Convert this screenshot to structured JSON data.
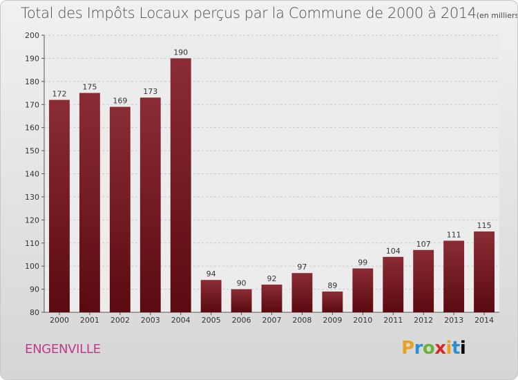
{
  "title": "Total des Impôts Locaux perçus par la Commune de 2000 à 2014",
  "unit": "(en milliers d'€)",
  "commune": "ENGENVILLE",
  "logo": [
    "P",
    "r",
    "o",
    "x",
    "i",
    "t",
    "i"
  ],
  "colors": {
    "bar_top": "#8b2c35",
    "bar_bottom": "#5a0a10",
    "accent": "#c0398c"
  },
  "chart_data": {
    "type": "bar",
    "categories": [
      "2000",
      "2001",
      "2002",
      "2003",
      "2004",
      "2005",
      "2006",
      "2007",
      "2008",
      "2009",
      "2010",
      "2011",
      "2012",
      "2013",
      "2014"
    ],
    "values": [
      172,
      175,
      169,
      173,
      190,
      94,
      90,
      92,
      97,
      89,
      99,
      104,
      107,
      111,
      115
    ],
    "ylim": [
      80,
      200
    ],
    "yticks": [
      80,
      90,
      100,
      110,
      120,
      130,
      140,
      150,
      160,
      170,
      180,
      190,
      200
    ],
    "grid": true,
    "legend": "none"
  }
}
